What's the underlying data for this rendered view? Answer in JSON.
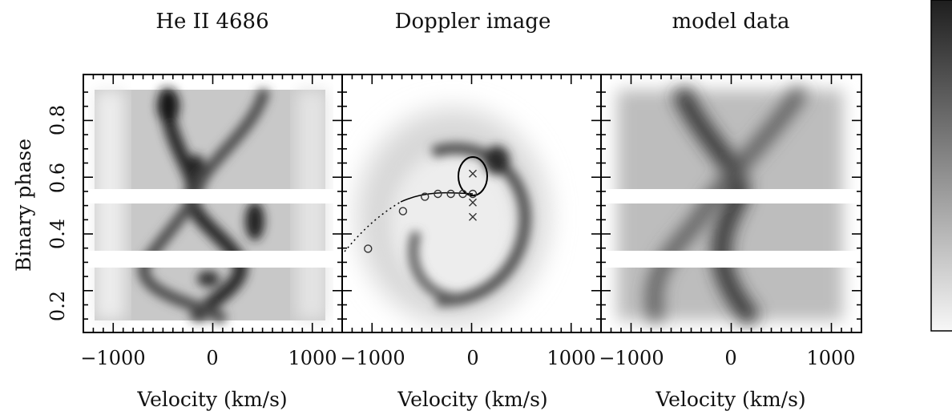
{
  "chart_data": [
    {
      "type": "heatmap",
      "title": "He II 4686",
      "xlabel": "Velocity (km/s)",
      "ylabel": "Binary phase",
      "xlim": [
        -1300,
        1300
      ],
      "ylim": [
        0.07,
        0.93
      ],
      "xticks": [
        "−1000",
        "0",
        "1000"
      ],
      "yticks": [
        "0.2",
        "0.4",
        "0.6",
        "0.8"
      ],
      "data_gaps_phase": [
        [
          0.28,
          0.33
        ],
        [
          0.54,
          0.58
        ]
      ],
      "colormap": "greyscale (white low, black high)"
    },
    {
      "type": "heatmap",
      "title": "Doppler image",
      "xlabel": "Velocity (km/s)",
      "xlim": [
        -1300,
        1300
      ],
      "xticks": [
        "−1000",
        "0",
        "1000"
      ],
      "overlays": {
        "roche_lobe_center": [
          0,
          0.59
        ],
        "stream_points": [
          {
            "x": -1050,
            "y": 0.34
          },
          {
            "x": -700,
            "y": 0.47
          },
          {
            "x": -480,
            "y": 0.52
          },
          {
            "x": -350,
            "y": 0.53
          },
          {
            "x": -220,
            "y": 0.53
          },
          {
            "x": -100,
            "y": 0.53
          },
          {
            "x": 0,
            "y": 0.53
          }
        ],
        "cross_markers": [
          {
            "x": 0,
            "y": 0.6
          },
          {
            "x": 0,
            "y": 0.5
          },
          {
            "x": 0,
            "y": 0.45
          }
        ]
      }
    },
    {
      "type": "heatmap",
      "title": "model data",
      "xlabel": "Velocity (km/s)",
      "xlim": [
        -1300,
        1300
      ],
      "xticks": [
        "−1000",
        "0",
        "1000"
      ],
      "data_gaps_phase": [
        [
          0.28,
          0.33
        ],
        [
          0.54,
          0.58
        ]
      ]
    }
  ],
  "colors": {
    "frame": "#000000",
    "background": "#ffffff",
    "ink": "#1a1a1a",
    "gap": "#ffffff"
  }
}
